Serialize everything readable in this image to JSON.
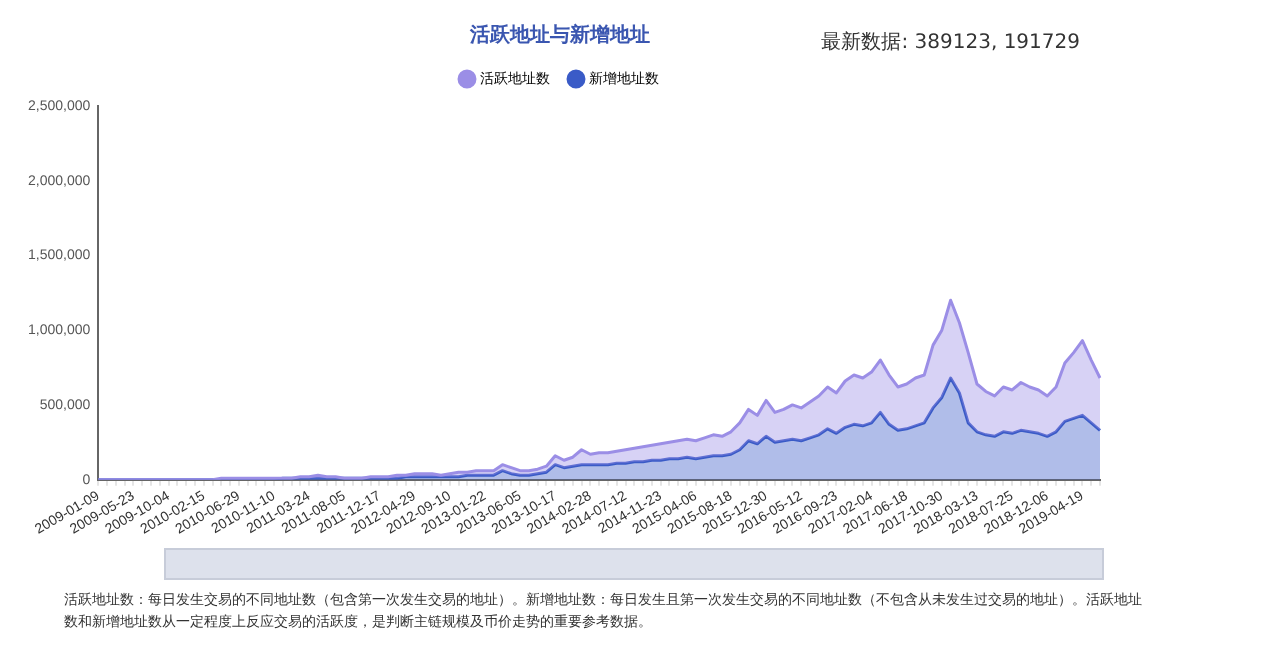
{
  "chart_data": {
    "type": "area",
    "title": "活跃地址与新增地址",
    "annotations": [
      "最新数据: 389123, 191729",
      "活跃地址数：每日发生交易的不同地址数（包含第一次发生交易的地址）。新增地址数：每日发生且第一次发生交易的不同地址数（不包含从未发生过交易的地址）。活跃地址数和新增地址数从一定程度上反应交易的活跃度，是判断主链规模及币价走势的重要参考数据。"
    ],
    "categories": [
      "2009-01-09",
      null,
      null,
      null,
      "2009-05-23",
      null,
      null,
      null,
      "2009-10-04",
      null,
      null,
      null,
      "2010-02-15",
      null,
      null,
      null,
      "2010-06-29",
      null,
      null,
      null,
      "2010-11-10",
      null,
      null,
      null,
      "2011-03-24",
      null,
      null,
      null,
      "2011-08-05",
      null,
      null,
      null,
      "2011-12-17",
      null,
      null,
      null,
      "2012-04-29",
      null,
      null,
      null,
      "2012-09-10",
      null,
      null,
      null,
      "2013-01-22",
      null,
      null,
      null,
      "2013-06-05",
      null,
      null,
      null,
      "2013-10-17",
      null,
      null,
      null,
      "2014-02-28",
      null,
      null,
      null,
      "2014-07-12",
      null,
      null,
      null,
      "2014-11-23",
      null,
      null,
      null,
      "2015-04-06",
      null,
      null,
      null,
      "2015-08-18",
      null,
      null,
      null,
      "2015-12-30",
      null,
      null,
      null,
      "2016-05-12",
      null,
      null,
      null,
      "2016-09-23",
      null,
      null,
      null,
      "2017-02-04",
      null,
      null,
      null,
      "2017-06-18",
      null,
      null,
      null,
      "2017-10-30",
      null,
      null,
      null,
      "2018-03-13",
      null,
      null,
      null,
      "2018-07-25",
      null,
      null,
      null,
      "2018-12-06",
      null,
      null,
      null,
      "2019-04-19",
      null,
      null
    ],
    "series": [
      {
        "name": "活跃地址数",
        "color": "#9b8ee6",
        "values": [
          0,
          0,
          0,
          0,
          0,
          0,
          0,
          0,
          0,
          0,
          0,
          0,
          0,
          0,
          10000,
          10000,
          10000,
          10000,
          10000,
          10000,
          10000,
          10000,
          10000,
          20000,
          20000,
          30000,
          20000,
          20000,
          10000,
          10000,
          10000,
          20000,
          20000,
          20000,
          30000,
          30000,
          40000,
          40000,
          40000,
          30000,
          40000,
          50000,
          50000,
          60000,
          60000,
          60000,
          100000,
          80000,
          60000,
          60000,
          70000,
          90000,
          160000,
          130000,
          150000,
          200000,
          170000,
          180000,
          180000,
          190000,
          200000,
          210000,
          220000,
          230000,
          240000,
          250000,
          260000,
          270000,
          260000,
          280000,
          300000,
          290000,
          320000,
          380000,
          470000,
          430000,
          530000,
          450000,
          470000,
          500000,
          480000,
          520000,
          560000,
          620000,
          580000,
          660000,
          700000,
          680000,
          720000,
          800000,
          700000,
          620000,
          640000,
          680000,
          700000,
          900000,
          1000000,
          1200000,
          1050000,
          850000,
          640000,
          590000,
          560000,
          620000,
          600000,
          650000,
          620000,
          600000,
          560000,
          620000,
          780000,
          850000,
          930000,
          800000,
          680000
        ]
      },
      {
        "name": "新增地址数",
        "color": "#3a5bc7",
        "values": [
          0,
          0,
          0,
          0,
          0,
          0,
          0,
          0,
          0,
          0,
          0,
          0,
          0,
          0,
          0,
          0,
          0,
          0,
          0,
          0,
          0,
          10000,
          10000,
          10000,
          10000,
          10000,
          10000,
          10000,
          10000,
          10000,
          10000,
          10000,
          10000,
          10000,
          10000,
          20000,
          20000,
          20000,
          20000,
          20000,
          20000,
          20000,
          30000,
          30000,
          30000,
          30000,
          60000,
          40000,
          30000,
          30000,
          40000,
          50000,
          100000,
          80000,
          90000,
          100000,
          100000,
          100000,
          100000,
          110000,
          110000,
          120000,
          120000,
          130000,
          130000,
          140000,
          140000,
          150000,
          140000,
          150000,
          160000,
          160000,
          170000,
          200000,
          260000,
          240000,
          290000,
          250000,
          260000,
          270000,
          260000,
          280000,
          300000,
          340000,
          310000,
          350000,
          370000,
          360000,
          380000,
          450000,
          370000,
          330000,
          340000,
          360000,
          380000,
          480000,
          550000,
          680000,
          580000,
          380000,
          320000,
          300000,
          290000,
          320000,
          310000,
          330000,
          320000,
          310000,
          290000,
          320000,
          390000,
          410000,
          430000,
          380000,
          330000
        ]
      }
    ],
    "ylim": [
      0,
      2500000
    ],
    "yticks": [
      {
        "value": 0,
        "label": "0"
      },
      {
        "value": 500000,
        "label": "500,000"
      },
      {
        "value": 1000000,
        "label": "1,000,000"
      },
      {
        "value": 1500000,
        "label": "1,500,000"
      },
      {
        "value": 2000000,
        "label": "2,000,000"
      },
      {
        "value": 2500000,
        "label": "2,500,000"
      }
    ],
    "grid": false,
    "legend": "top",
    "marker": "none"
  }
}
